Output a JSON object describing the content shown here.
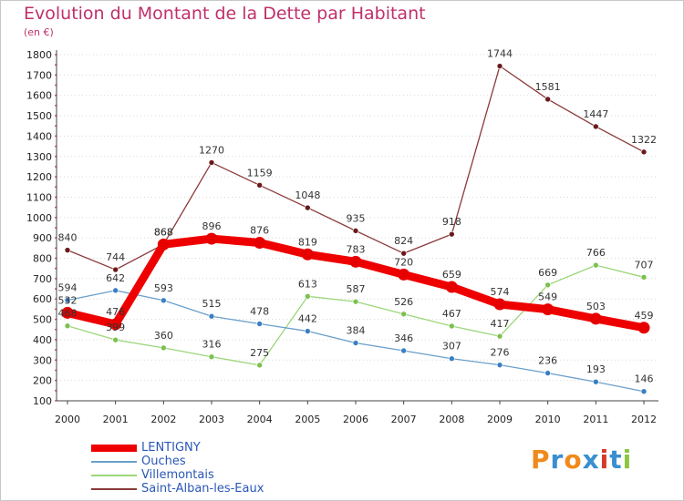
{
  "header": {
    "title": "Evolution du Montant de la Dette par Habitant",
    "subtitle": "(en €)"
  },
  "logo": {
    "text": "Proxiti",
    "colors": [
      "#f08a1c",
      "#3a8fd0",
      "#f08a1c",
      "#3a8fd0",
      "#d63a2a",
      "#3a8fd0",
      "#8cc63f"
    ]
  },
  "chart_data": {
    "type": "line",
    "title": "Evolution du Montant de la Dette par Habitant",
    "subtitle": "(en €)",
    "xlabel": "",
    "ylabel": "",
    "x": [
      "2000",
      "2001",
      "2002",
      "2003",
      "2004",
      "2005",
      "2006",
      "2007",
      "2008",
      "2009",
      "2010",
      "2011",
      "2012"
    ],
    "ylim": [
      100,
      1800
    ],
    "yticks": [
      100,
      200,
      300,
      400,
      500,
      600,
      700,
      800,
      900,
      1000,
      1100,
      1200,
      1300,
      1400,
      1500,
      1600,
      1700,
      1800
    ],
    "grid": "horizontal-dotted",
    "legend_position": "bottom-left",
    "series": [
      {
        "name": "LENTIGNY",
        "color": "#ee0000",
        "marker": "#e60000",
        "values": [
          532,
          476,
          868,
          896,
          876,
          819,
          783,
          720,
          659,
          574,
          549,
          503,
          459
        ],
        "labels": [
          "532",
          "476",
          "868",
          "896",
          "876",
          "819",
          "783",
          "720",
          "659",
          "574",
          "549",
          "503",
          "459"
        ]
      },
      {
        "name": "Ouches",
        "color": "#6aa0cc",
        "marker": "#3a7fc0",
        "values": [
          594,
          642,
          593,
          515,
          478,
          442,
          384,
          346,
          307,
          276,
          236,
          193,
          146
        ],
        "labels": [
          "594",
          "642",
          "593",
          "515",
          "478",
          "442",
          "384",
          "346",
          "307",
          "276",
          "236",
          "193",
          "146"
        ]
      },
      {
        "name": "Villemontais",
        "color": "#9cd67a",
        "marker": "#7cc050",
        "values": [
          468,
          399,
          360,
          316,
          275,
          613,
          587,
          526,
          467,
          417,
          669,
          766,
          707
        ],
        "labels": [
          "468",
          "399",
          "360",
          "316",
          "275",
          "613",
          "587",
          "526",
          "467",
          "417",
          "669",
          "766",
          "707"
        ]
      },
      {
        "name": "Saint-Alban-les-Eaux",
        "color": "#8a3a3a",
        "marker": "#6a1a1a",
        "values": [
          840,
          744,
          868,
          1270,
          1159,
          1048,
          935,
          824,
          918,
          1744,
          1581,
          1447,
          1322
        ],
        "labels": [
          "840",
          "744",
          "868",
          "1270",
          "1159",
          "1048",
          "935",
          "824",
          "918",
          "1744",
          "1581",
          "1447",
          "1322"
        ]
      }
    ]
  }
}
